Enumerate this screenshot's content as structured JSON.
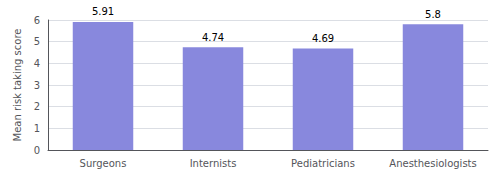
{
  "chart_data": {
    "type": "bar",
    "categories": [
      "Surgeons",
      "Internists",
      "Pediatricians",
      "Anesthesiologists"
    ],
    "values": [
      5.91,
      4.74,
      4.69,
      5.8
    ],
    "color": "#8888dd",
    "ylabel": "Mean risk taking score",
    "ylim": [
      0,
      6
    ],
    "yticks": [
      0,
      1,
      2,
      3,
      4,
      5,
      6
    ],
    "grid": true,
    "data_labels": true
  }
}
